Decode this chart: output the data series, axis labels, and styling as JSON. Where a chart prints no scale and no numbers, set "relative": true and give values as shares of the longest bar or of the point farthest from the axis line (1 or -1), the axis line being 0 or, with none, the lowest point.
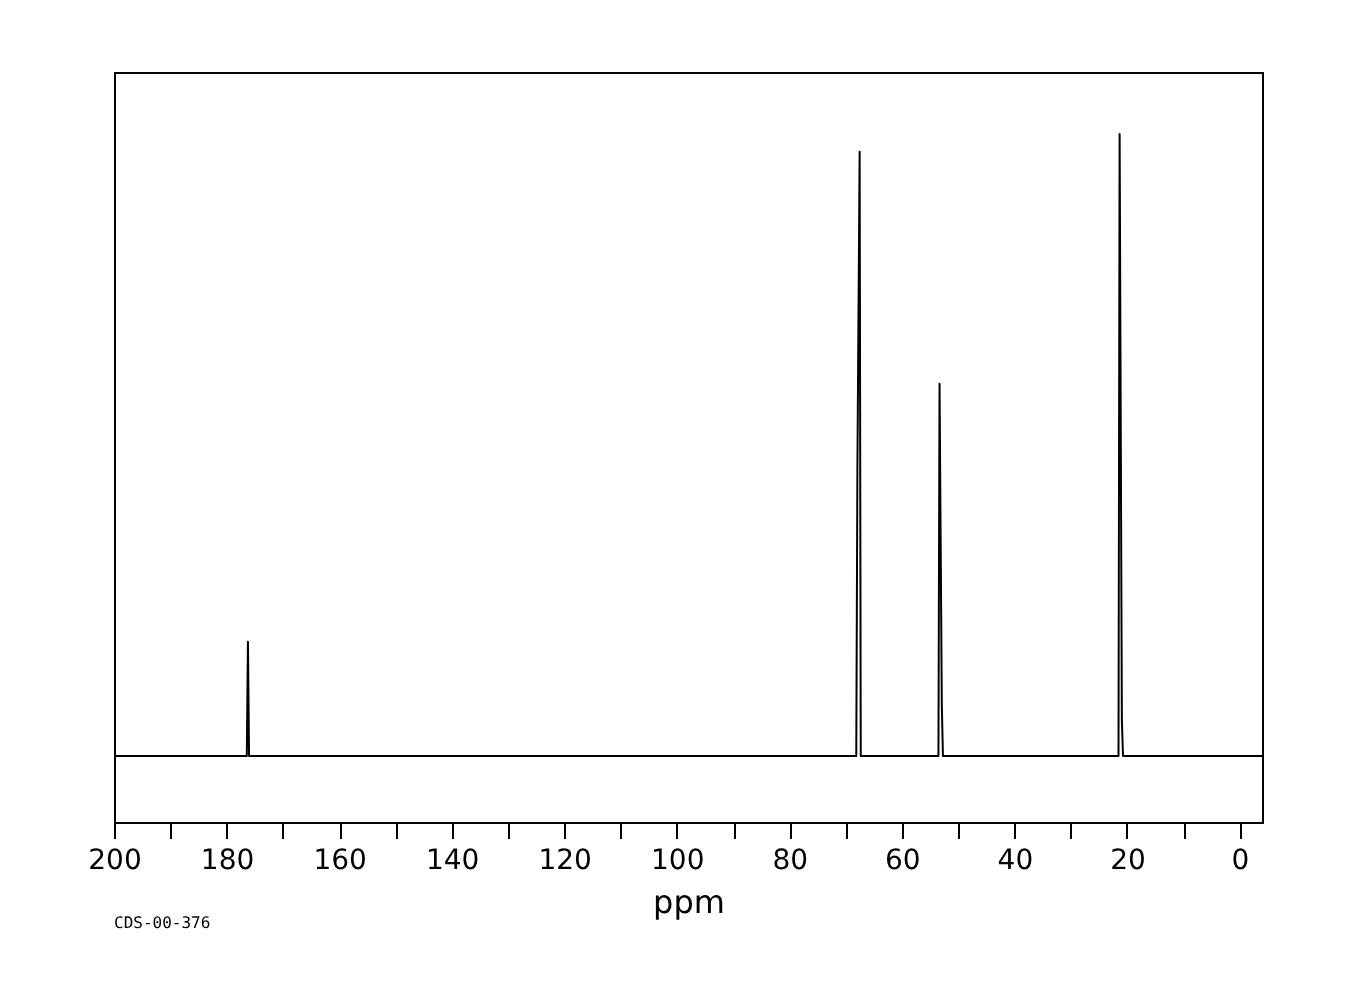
{
  "chart_data": {
    "type": "line",
    "relative": true,
    "xlabel": "ppm",
    "x": [
      200,
      176.4,
      176.2,
      176.0,
      68.1,
      67.9,
      67.5,
      67.3,
      53.5,
      53.3,
      52.9,
      52.7,
      21.5,
      21.3,
      20.9,
      20.7,
      -4
    ],
    "series": [
      {
        "color": "#000000",
        "values": [
          0.096,
          0.096,
          0.262,
          0.096,
          0.096,
          0.509,
          0.974,
          0.096,
          0.096,
          0.637,
          0.172,
          0.096,
          0.096,
          1,
          0.148,
          0.096,
          0.096
        ]
      }
    ],
    "xlim": [
      200,
      -4
    ],
    "xticks": [
      200,
      {
        "value": 190,
        "label": null
      },
      180,
      {
        "value": 170,
        "label": null
      },
      160,
      {
        "value": 150,
        "label": null
      },
      140,
      {
        "value": 130,
        "label": null
      },
      120,
      {
        "value": 110,
        "label": null
      },
      100,
      {
        "value": 90,
        "label": null
      },
      80,
      {
        "value": 70,
        "label": null
      },
      60,
      {
        "value": 50,
        "label": null
      },
      40,
      {
        "value": 30,
        "label": null
      },
      20,
      {
        "value": 10,
        "label": null
      },
      0
    ],
    "grid": false,
    "marker": "none",
    "line_style": "solid",
    "annotations": [
      "CDS-00-376"
    ]
  }
}
